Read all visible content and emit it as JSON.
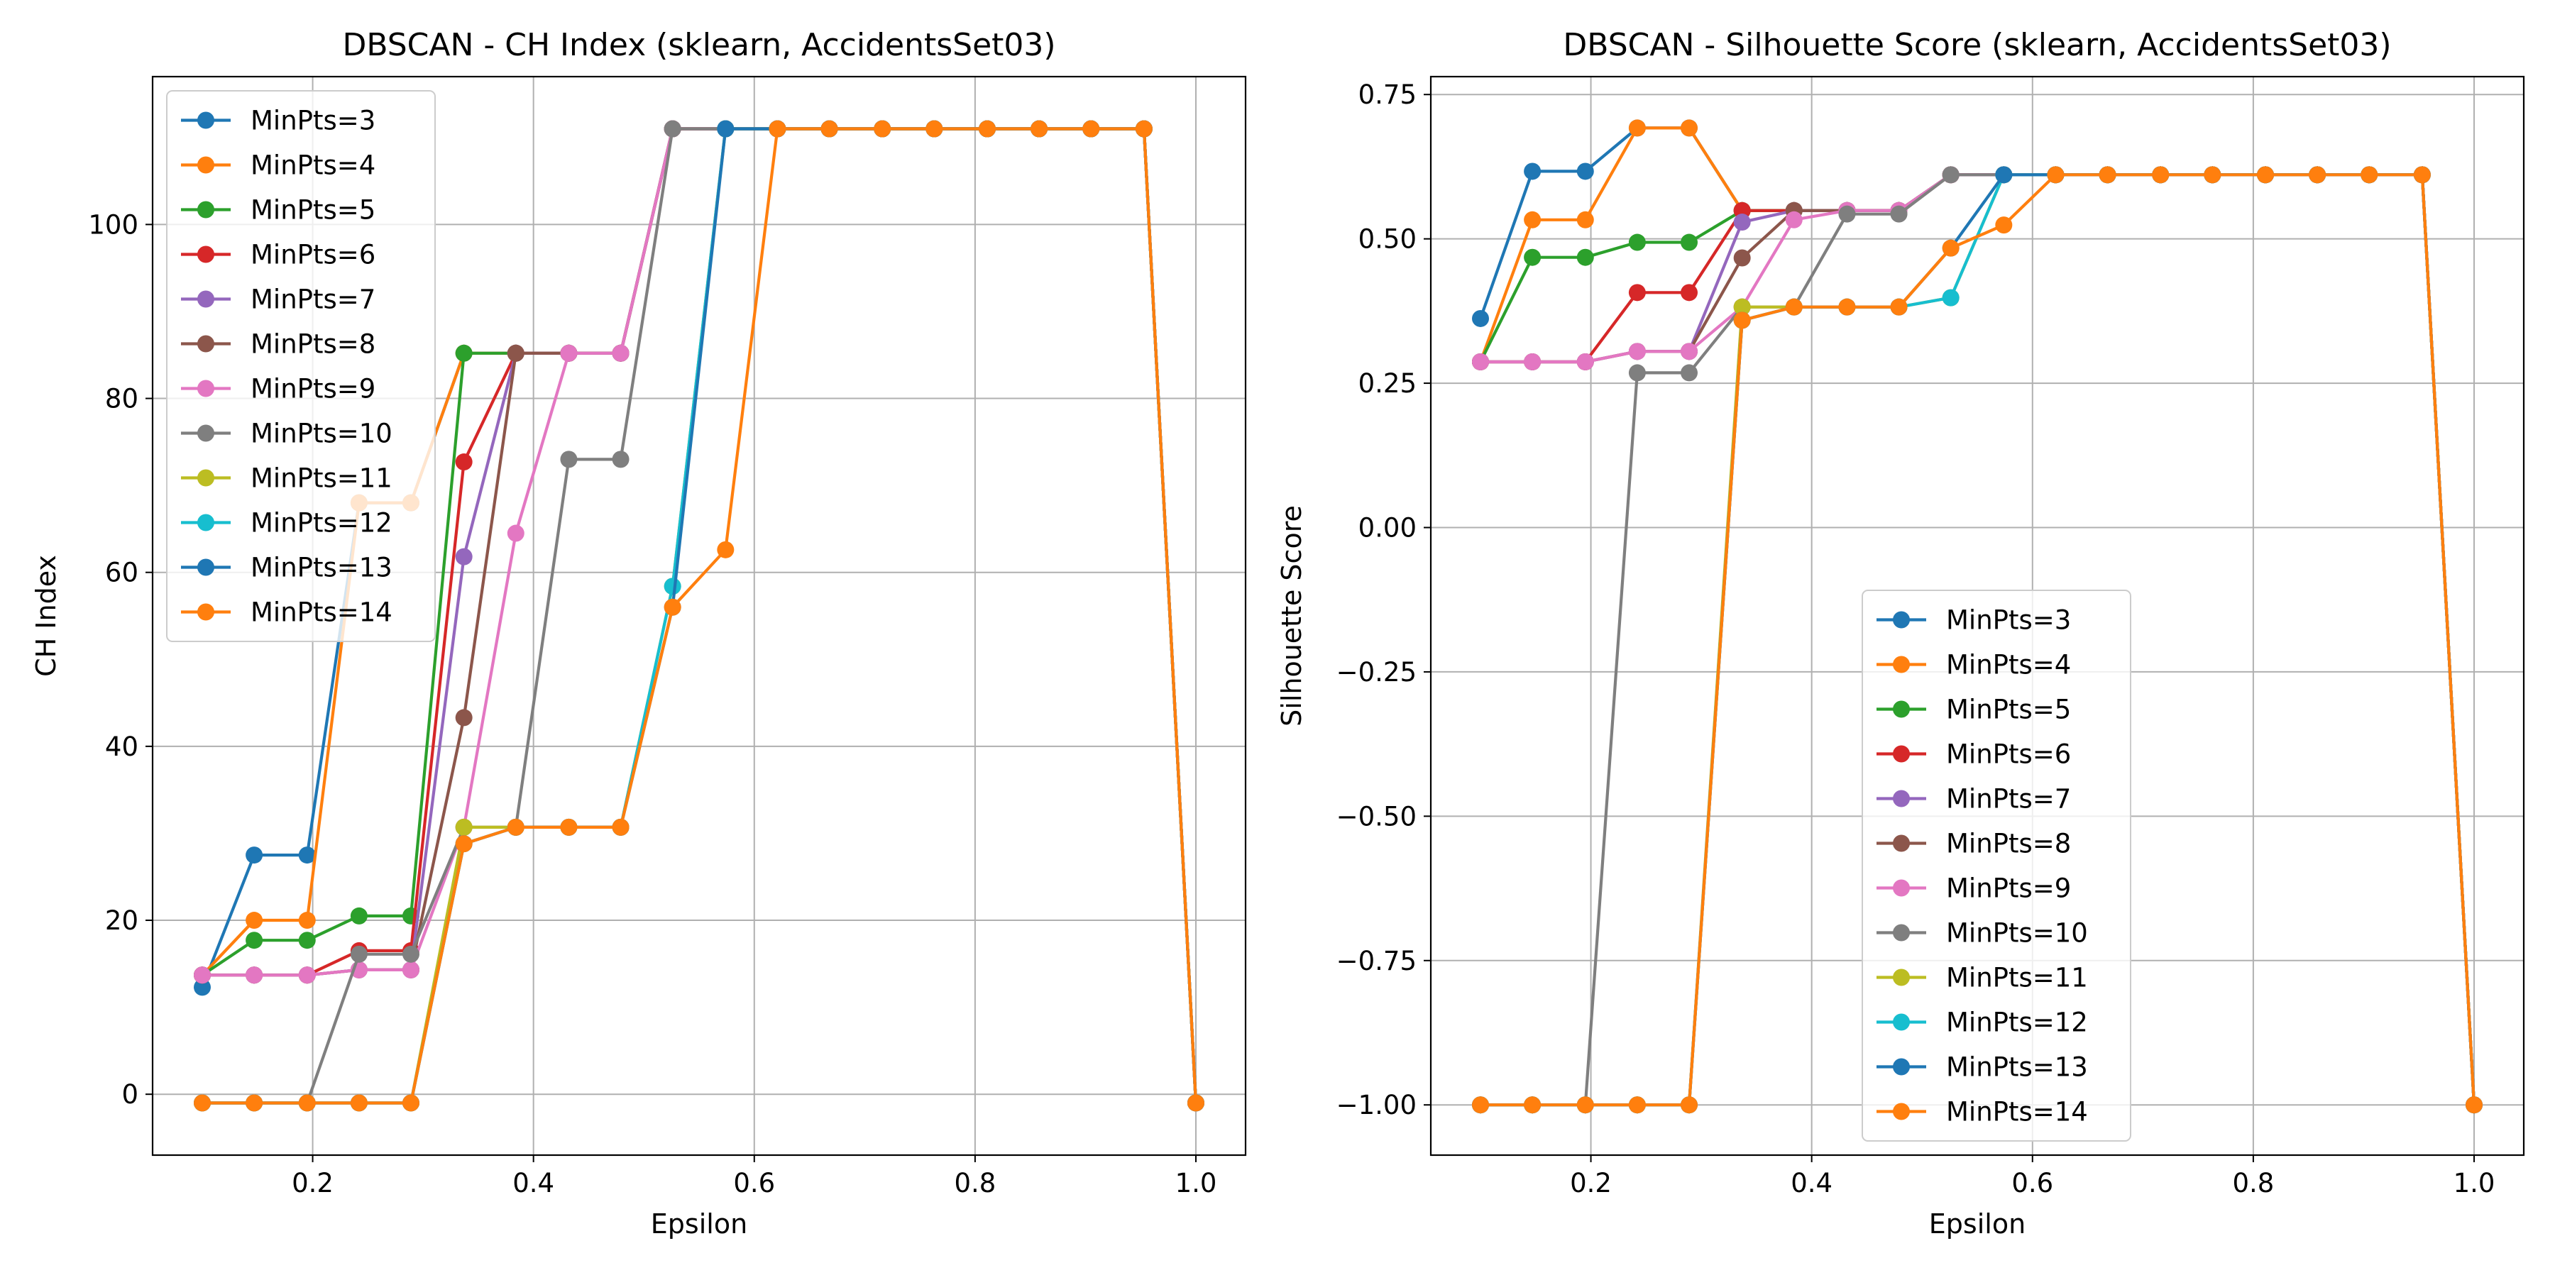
{
  "chart_data": [
    {
      "type": "line",
      "title": "DBSCAN - CH Index (sklearn, AccidentsSet03)",
      "xlabel": "Epsilon",
      "ylabel": "CH Index",
      "xlim": [
        0.055,
        1.045
      ],
      "ylim": [
        -7,
        117
      ],
      "xticks": [
        0.2,
        0.4,
        0.6,
        0.8,
        1.0
      ],
      "xtick_labels": [
        "0.2",
        "0.4",
        "0.6",
        "0.8",
        "1.0"
      ],
      "yticks": [
        0,
        20,
        40,
        60,
        80,
        100
      ],
      "ytick_labels": [
        "0",
        "20",
        "40",
        "60",
        "80",
        "100"
      ],
      "grid": true,
      "legend_position": "upper-left",
      "x": [
        0.1,
        0.147,
        0.195,
        0.242,
        0.289,
        0.337,
        0.384,
        0.432,
        0.479,
        0.526,
        0.574,
        0.621,
        0.668,
        0.716,
        0.763,
        0.811,
        0.858,
        0.905,
        0.953,
        1.0
      ],
      "series": [
        {
          "name": "MinPts=3",
          "color": "#1f77b4",
          "values": [
            12.3,
            27.5,
            27.5,
            68.0,
            68.0,
            85.2,
            85.2,
            85.2,
            85.2,
            111.0,
            111.0,
            111.0,
            111.0,
            111.0,
            111.0,
            111.0,
            111.0,
            111.0,
            111.0,
            -1.0
          ]
        },
        {
          "name": "MinPts=4",
          "color": "#ff7f0e",
          "values": [
            13.7,
            20.0,
            20.0,
            68.0,
            68.0,
            85.2,
            85.2,
            85.2,
            85.2,
            111.0,
            111.0,
            111.0,
            111.0,
            111.0,
            111.0,
            111.0,
            111.0,
            111.0,
            111.0,
            -1.0
          ]
        },
        {
          "name": "MinPts=5",
          "color": "#2ca02c",
          "values": [
            13.7,
            17.7,
            17.7,
            20.5,
            20.5,
            85.2,
            85.2,
            85.2,
            85.2,
            111.0,
            111.0,
            111.0,
            111.0,
            111.0,
            111.0,
            111.0,
            111.0,
            111.0,
            111.0,
            -1.0
          ]
        },
        {
          "name": "MinPts=6",
          "color": "#d62728",
          "values": [
            13.7,
            13.7,
            13.7,
            16.5,
            16.5,
            72.7,
            85.2,
            85.2,
            85.2,
            111.0,
            111.0,
            111.0,
            111.0,
            111.0,
            111.0,
            111.0,
            111.0,
            111.0,
            111.0,
            -1.0
          ]
        },
        {
          "name": "MinPts=7",
          "color": "#9467bd",
          "values": [
            13.7,
            13.7,
            13.7,
            14.3,
            14.3,
            61.8,
            85.2,
            85.2,
            85.2,
            111.0,
            111.0,
            111.0,
            111.0,
            111.0,
            111.0,
            111.0,
            111.0,
            111.0,
            111.0,
            -1.0
          ]
        },
        {
          "name": "MinPts=8",
          "color": "#8c564b",
          "values": [
            13.7,
            13.7,
            13.7,
            14.3,
            14.3,
            43.3,
            85.2,
            85.2,
            85.2,
            111.0,
            111.0,
            111.0,
            111.0,
            111.0,
            111.0,
            111.0,
            111.0,
            111.0,
            111.0,
            -1.0
          ]
        },
        {
          "name": "MinPts=9",
          "color": "#e377c2",
          "values": [
            13.7,
            13.7,
            13.7,
            14.3,
            14.3,
            30.7,
            64.5,
            85.2,
            85.2,
            111.0,
            111.0,
            111.0,
            111.0,
            111.0,
            111.0,
            111.0,
            111.0,
            111.0,
            111.0,
            -1.0
          ]
        },
        {
          "name": "MinPts=10",
          "color": "#7f7f7f",
          "values": [
            -1.0,
            -1.0,
            -1.0,
            16.1,
            16.1,
            30.7,
            30.7,
            73.0,
            73.0,
            111.0,
            111.0,
            111.0,
            111.0,
            111.0,
            111.0,
            111.0,
            111.0,
            111.0,
            111.0,
            -1.0
          ]
        },
        {
          "name": "MinPts=11",
          "color": "#bcbd22",
          "values": [
            -1.0,
            -1.0,
            -1.0,
            -1.0,
            -1.0,
            30.7,
            30.7,
            30.7,
            30.7,
            58.4,
            111.0,
            111.0,
            111.0,
            111.0,
            111.0,
            111.0,
            111.0,
            111.0,
            111.0,
            -1.0
          ]
        },
        {
          "name": "MinPts=12",
          "color": "#17becf",
          "values": [
            -1.0,
            -1.0,
            -1.0,
            -1.0,
            -1.0,
            28.8,
            30.7,
            30.7,
            30.7,
            58.4,
            111.0,
            111.0,
            111.0,
            111.0,
            111.0,
            111.0,
            111.0,
            111.0,
            111.0,
            -1.0
          ]
        },
        {
          "name": "MinPts=13",
          "color": "#1f77b4",
          "values": [
            -1.0,
            -1.0,
            -1.0,
            -1.0,
            -1.0,
            28.8,
            30.7,
            30.7,
            30.7,
            56.0,
            111.0,
            111.0,
            111.0,
            111.0,
            111.0,
            111.0,
            111.0,
            111.0,
            111.0,
            -1.0
          ]
        },
        {
          "name": "MinPts=14",
          "color": "#ff7f0e",
          "values": [
            -1.0,
            -1.0,
            -1.0,
            -1.0,
            -1.0,
            28.8,
            30.7,
            30.7,
            30.7,
            56.0,
            62.6,
            111.0,
            111.0,
            111.0,
            111.0,
            111.0,
            111.0,
            111.0,
            111.0,
            -1.0
          ]
        }
      ]
    },
    {
      "type": "line",
      "title": "DBSCAN - Silhouette Score (sklearn, AccidentsSet03)",
      "xlabel": "Epsilon",
      "ylabel": "Silhouette Score",
      "xlim": [
        0.055,
        1.045
      ],
      "ylim": [
        -1.087,
        0.781
      ],
      "xticks": [
        0.2,
        0.4,
        0.6,
        0.8,
        1.0
      ],
      "xtick_labels": [
        "0.2",
        "0.4",
        "0.6",
        "0.8",
        "1.0"
      ],
      "yticks": [
        -1.0,
        -0.75,
        -0.5,
        -0.25,
        0.0,
        0.25,
        0.5,
        0.75
      ],
      "ytick_labels": [
        "−1.00",
        "−0.75",
        "−0.50",
        "−0.25",
        "0.00",
        "0.25",
        "0.50",
        "0.75"
      ],
      "grid": true,
      "legend_position": "lower-center",
      "x": [
        0.1,
        0.147,
        0.195,
        0.242,
        0.289,
        0.337,
        0.384,
        0.432,
        0.479,
        0.526,
        0.574,
        0.621,
        0.668,
        0.716,
        0.763,
        0.811,
        0.858,
        0.905,
        0.953,
        1.0
      ],
      "series": [
        {
          "name": "MinPts=3",
          "color": "#1f77b4",
          "values": [
            0.362,
            0.617,
            0.617,
            0.692,
            0.692,
            0.549,
            0.549,
            0.549,
            0.549,
            0.611,
            0.611,
            0.611,
            0.611,
            0.611,
            0.611,
            0.611,
            0.611,
            0.611,
            0.611,
            -1.0
          ]
        },
        {
          "name": "MinPts=4",
          "color": "#ff7f0e",
          "values": [
            0.287,
            0.533,
            0.533,
            0.692,
            0.692,
            0.549,
            0.549,
            0.549,
            0.549,
            0.611,
            0.611,
            0.611,
            0.611,
            0.611,
            0.611,
            0.611,
            0.611,
            0.611,
            0.611,
            -1.0
          ]
        },
        {
          "name": "MinPts=5",
          "color": "#2ca02c",
          "values": [
            0.287,
            0.468,
            0.468,
            0.494,
            0.494,
            0.549,
            0.549,
            0.549,
            0.549,
            0.611,
            0.611,
            0.611,
            0.611,
            0.611,
            0.611,
            0.611,
            0.611,
            0.611,
            0.611,
            -1.0
          ]
        },
        {
          "name": "MinPts=6",
          "color": "#d62728",
          "values": [
            0.287,
            0.287,
            0.287,
            0.407,
            0.407,
            0.549,
            0.549,
            0.549,
            0.549,
            0.611,
            0.611,
            0.611,
            0.611,
            0.611,
            0.611,
            0.611,
            0.611,
            0.611,
            0.611,
            -1.0
          ]
        },
        {
          "name": "MinPts=7",
          "color": "#9467bd",
          "values": [
            0.287,
            0.287,
            0.287,
            0.305,
            0.305,
            0.529,
            0.549,
            0.549,
            0.549,
            0.611,
            0.611,
            0.611,
            0.611,
            0.611,
            0.611,
            0.611,
            0.611,
            0.611,
            0.611,
            -1.0
          ]
        },
        {
          "name": "MinPts=8",
          "color": "#8c564b",
          "values": [
            0.287,
            0.287,
            0.287,
            0.305,
            0.305,
            0.467,
            0.549,
            0.549,
            0.549,
            0.611,
            0.611,
            0.611,
            0.611,
            0.611,
            0.611,
            0.611,
            0.611,
            0.611,
            0.611,
            -1.0
          ]
        },
        {
          "name": "MinPts=9",
          "color": "#e377c2",
          "values": [
            0.287,
            0.287,
            0.287,
            0.305,
            0.305,
            0.382,
            0.533,
            0.549,
            0.549,
            0.611,
            0.611,
            0.611,
            0.611,
            0.611,
            0.611,
            0.611,
            0.611,
            0.611,
            0.611,
            -1.0
          ]
        },
        {
          "name": "MinPts=10",
          "color": "#7f7f7f",
          "values": [
            -1.0,
            -1.0,
            -1.0,
            0.268,
            0.268,
            0.382,
            0.382,
            0.543,
            0.543,
            0.611,
            0.611,
            0.611,
            0.611,
            0.611,
            0.611,
            0.611,
            0.611,
            0.611,
            0.611,
            -1.0
          ]
        },
        {
          "name": "MinPts=11",
          "color": "#bcbd22",
          "values": [
            -1.0,
            -1.0,
            -1.0,
            -1.0,
            -1.0,
            0.382,
            0.382,
            0.382,
            0.382,
            0.398,
            0.611,
            0.611,
            0.611,
            0.611,
            0.611,
            0.611,
            0.611,
            0.611,
            0.611,
            -1.0
          ]
        },
        {
          "name": "MinPts=12",
          "color": "#17becf",
          "values": [
            -1.0,
            -1.0,
            -1.0,
            -1.0,
            -1.0,
            0.359,
            0.382,
            0.382,
            0.382,
            0.398,
            0.611,
            0.611,
            0.611,
            0.611,
            0.611,
            0.611,
            0.611,
            0.611,
            0.611,
            -1.0
          ]
        },
        {
          "name": "MinPts=13",
          "color": "#1f77b4",
          "values": [
            -1.0,
            -1.0,
            -1.0,
            -1.0,
            -1.0,
            0.359,
            0.382,
            0.382,
            0.382,
            0.484,
            0.611,
            0.611,
            0.611,
            0.611,
            0.611,
            0.611,
            0.611,
            0.611,
            0.611,
            -1.0
          ]
        },
        {
          "name": "MinPts=14",
          "color": "#ff7f0e",
          "values": [
            -1.0,
            -1.0,
            -1.0,
            -1.0,
            -1.0,
            0.359,
            0.382,
            0.382,
            0.382,
            0.484,
            0.524,
            0.611,
            0.611,
            0.611,
            0.611,
            0.611,
            0.611,
            0.611,
            0.611,
            -1.0
          ]
        }
      ]
    }
  ]
}
